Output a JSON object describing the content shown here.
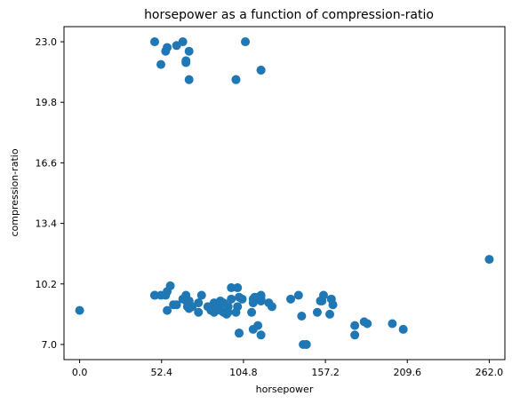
{
  "chart_data": {
    "type": "scatter",
    "title": "horsepower as a function of compression-ratio",
    "xlabel": "horsepower",
    "ylabel": "compression-ratio",
    "xlim": [
      -10,
      272
    ],
    "ylim": [
      6.2,
      23.8
    ],
    "xticks": [
      0.0,
      52.4,
      104.8,
      157.2,
      209.6,
      262.0
    ],
    "xtick_labels": [
      "0.0",
      "52.4",
      "104.8",
      "157.2",
      "209.6",
      "262.0"
    ],
    "yticks": [
      7.0,
      10.2,
      13.4,
      16.6,
      19.8,
      23.0
    ],
    "ytick_labels": [
      "7.0",
      "10.2",
      "13.4",
      "16.6",
      "19.8",
      "23.0"
    ],
    "grid": false,
    "legend": "none",
    "point_color": "#1f77b4",
    "series": [
      {
        "x": [
          0,
          48,
          56,
          58,
          60,
          62,
          66,
          68,
          68,
          69,
          69,
          70,
          70,
          70,
          72,
          76,
          76,
          78,
          82,
          84,
          84,
          85,
          86,
          86,
          88,
          88,
          90,
          90,
          92,
          92,
          94,
          95,
          95,
          97,
          97,
          100,
          101,
          101,
          102,
          102,
          102,
          104,
          110,
          111,
          111,
          111,
          112,
          114,
          114,
          116,
          116,
          116,
          116,
          116,
          121,
          123,
          135,
          140,
          142,
          143,
          145,
          145,
          152,
          154,
          155,
          156,
          160,
          161,
          162,
          176,
          176,
          182,
          184,
          200,
          207,
          262,
          48,
          52,
          55,
          56,
          62,
          68,
          68,
          70,
          70,
          100,
          100,
          106,
          116,
          116
        ],
        "y": [
          8.8,
          9.6,
          9.8,
          10.1,
          9.1,
          9.1,
          9.4,
          9.4,
          9.6,
          9.2,
          9.0,
          9.3,
          9.3,
          8.9,
          9.0,
          9.2,
          8.7,
          9.6,
          9.0,
          8.9,
          8.8,
          9.0,
          9.2,
          8.7,
          9.0,
          9.0,
          9.3,
          8.8,
          8.7,
          9.2,
          8.6,
          8.7,
          9.0,
          9.4,
          10.0,
          8.7,
          9.0,
          10.0,
          9.5,
          7.6,
          7.6,
          9.4,
          8.7,
          9.2,
          7.8,
          9.4,
          9.5,
          9.5,
          8.0,
          7.5,
          9.6,
          9.3,
          9.4,
          9.3,
          9.2,
          9.0,
          9.4,
          9.6,
          8.5,
          7.0,
          7.0,
          7.0,
          8.7,
          9.3,
          9.3,
          9.6,
          8.6,
          9.4,
          9.1,
          8.0,
          7.5,
          8.2,
          8.1,
          8.1,
          7.8,
          11.5,
          9.6,
          9.6,
          9.6,
          8.8,
          23.0,
          21.8,
          22.5,
          22.7,
          22.8,
          23.0,
          22.0,
          21.9,
          22.5,
          21.0
        ],
        "x2": [
          48,
          52,
          55,
          56,
          62,
          66,
          68,
          68,
          70,
          70,
          100,
          100,
          106,
          116,
          116
        ],
        "y2": [
          23.0,
          21.8,
          22.5,
          22.7,
          22.8,
          23.0,
          22.0,
          21.9,
          22.5,
          21.0,
          21.0,
          21.0,
          23.0,
          21.5,
          21.5
        ]
      }
    ]
  }
}
